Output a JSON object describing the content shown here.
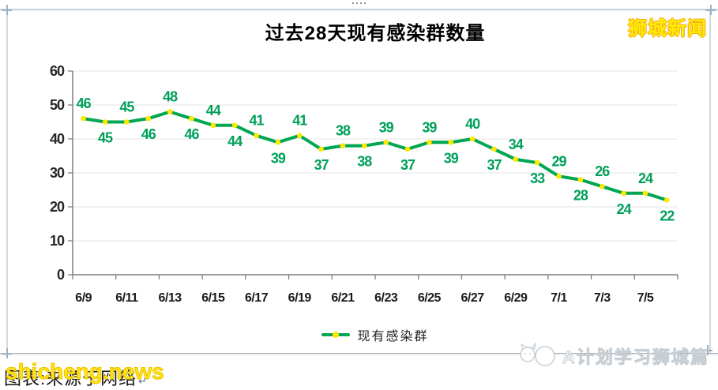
{
  "window": {
    "logo_text": "狮城新闻",
    "watermark_yellow": "shicheng.news",
    "caption_black": "图表:来源于网络",
    "caption_return_mark": "↵",
    "banner_text": "A计划学习狮城篇"
  },
  "chart_data": {
    "type": "line",
    "title": "过去28天现有感染群数量",
    "x_labels": [
      "6/9",
      "6/11",
      "6/13",
      "6/15",
      "6/17",
      "6/19",
      "6/21",
      "6/23",
      "6/25",
      "6/27",
      "6/29",
      "7/1",
      "7/3",
      "7/5"
    ],
    "series": [
      {
        "name": "现有感染群",
        "values": [
          46,
          45,
          45,
          46,
          48,
          46,
          44,
          44,
          41,
          39,
          41,
          37,
          38,
          38,
          39,
          37,
          39,
          39,
          40,
          37,
          34,
          33,
          29,
          28,
          26,
          24,
          24,
          22
        ]
      }
    ],
    "data_label_placement": "alternate-above-below",
    "y_ticks": [
      0,
      10,
      20,
      30,
      40,
      50,
      60
    ],
    "ylim": [
      0,
      60
    ],
    "grid": true,
    "legend": {
      "label": "现有感染群",
      "position": "bottom"
    },
    "colors": {
      "line": "#00A651",
      "marker": "#FFE800",
      "data_label": "#00A05A",
      "axis": "#7f7f7f",
      "gridline": "#e4e4e4",
      "tick_text": "#262626"
    }
  }
}
